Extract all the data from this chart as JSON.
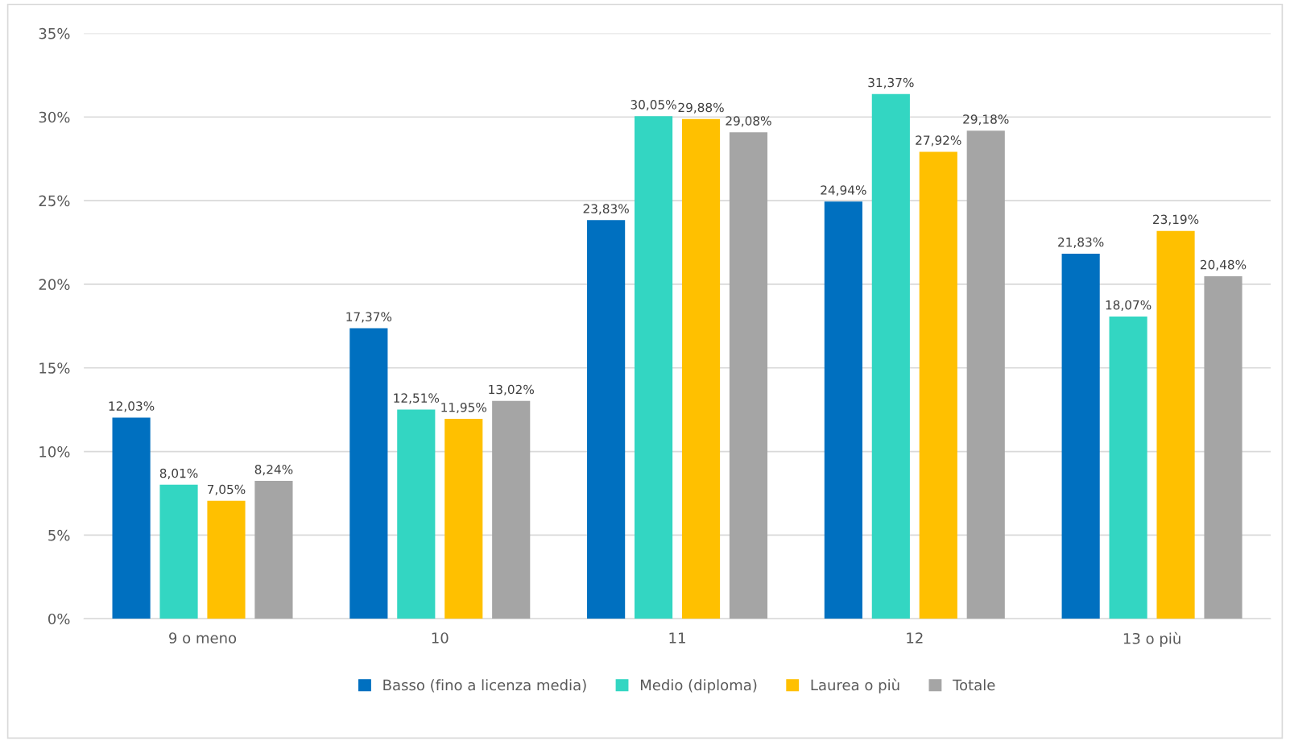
{
  "chart_data": {
    "type": "bar",
    "categories": [
      "9 o meno",
      "10",
      "11",
      "12",
      "13 o più"
    ],
    "series": [
      {
        "name": "Basso (fino a licenza media)",
        "color": "#0070c0",
        "values": [
          12.03,
          17.37,
          23.83,
          24.94,
          21.83
        ],
        "value_labels": [
          "12,03%",
          "17,37%",
          "23,83%",
          "24,94%",
          "21,83%"
        ]
      },
      {
        "name": "Medio (diploma)",
        "color": "#33d6c2",
        "values": [
          8.01,
          12.51,
          30.05,
          31.37,
          18.07
        ],
        "value_labels": [
          "8,01%",
          "12,51%",
          "30,05%",
          "31,37%",
          "18,07%"
        ]
      },
      {
        "name": "Laurea o più",
        "color": "#ffc000",
        "values": [
          7.05,
          11.95,
          29.88,
          27.92,
          23.19
        ],
        "value_labels": [
          "7,05%",
          "11,95%",
          "29,88%",
          "27,92%",
          "23,19%"
        ]
      },
      {
        "name": "Totale",
        "color": "#a5a5a5",
        "values": [
          8.24,
          13.02,
          29.08,
          29.18,
          20.48
        ],
        "value_labels": [
          "8,24%",
          "13,02%",
          "29,08%",
          "29,18%",
          "20,48%"
        ]
      }
    ],
    "ylim": [
      0,
      35
    ],
    "yticks": [
      {
        "value": 0,
        "label": "0%"
      },
      {
        "value": 5,
        "label": "5%"
      },
      {
        "value": 10,
        "label": "10%"
      },
      {
        "value": 15,
        "label": "15%"
      },
      {
        "value": 20,
        "label": "20%"
      },
      {
        "value": 25,
        "label": "25%"
      },
      {
        "value": 30,
        "label": "30%"
      },
      {
        "value": 35,
        "label": "35%"
      }
    ],
    "grid": "y",
    "legend": "bottom"
  }
}
